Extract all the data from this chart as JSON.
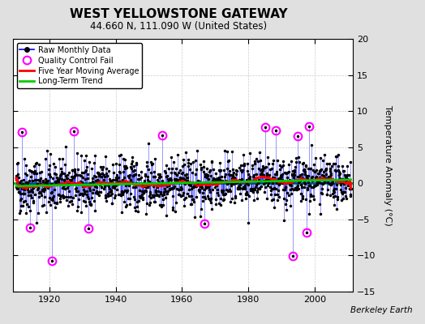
{
  "title": "WEST YELLOWSTONE GATEWAY",
  "subtitle": "44.660 N, 111.090 W (United States)",
  "ylabel": "Temperature Anomaly (°C)",
  "attribution": "Berkeley Earth",
  "year_start": 1910,
  "year_end": 2011,
  "ylim": [
    -15,
    20
  ],
  "yticks": [
    -15,
    -10,
    -5,
    0,
    5,
    10,
    15,
    20
  ],
  "xticks": [
    1920,
    1940,
    1960,
    1980,
    2000
  ],
  "bg_color": "#e0e0e0",
  "plot_bg_color": "#ffffff",
  "raw_line_color": "#0000ff",
  "raw_marker_color": "#000000",
  "qc_fail_color": "#ff00ff",
  "moving_avg_color": "#ff0000",
  "trend_color": "#00cc00",
  "zero_line_color": "#00bb00",
  "grid_color": "#cccccc",
  "seed": 42
}
